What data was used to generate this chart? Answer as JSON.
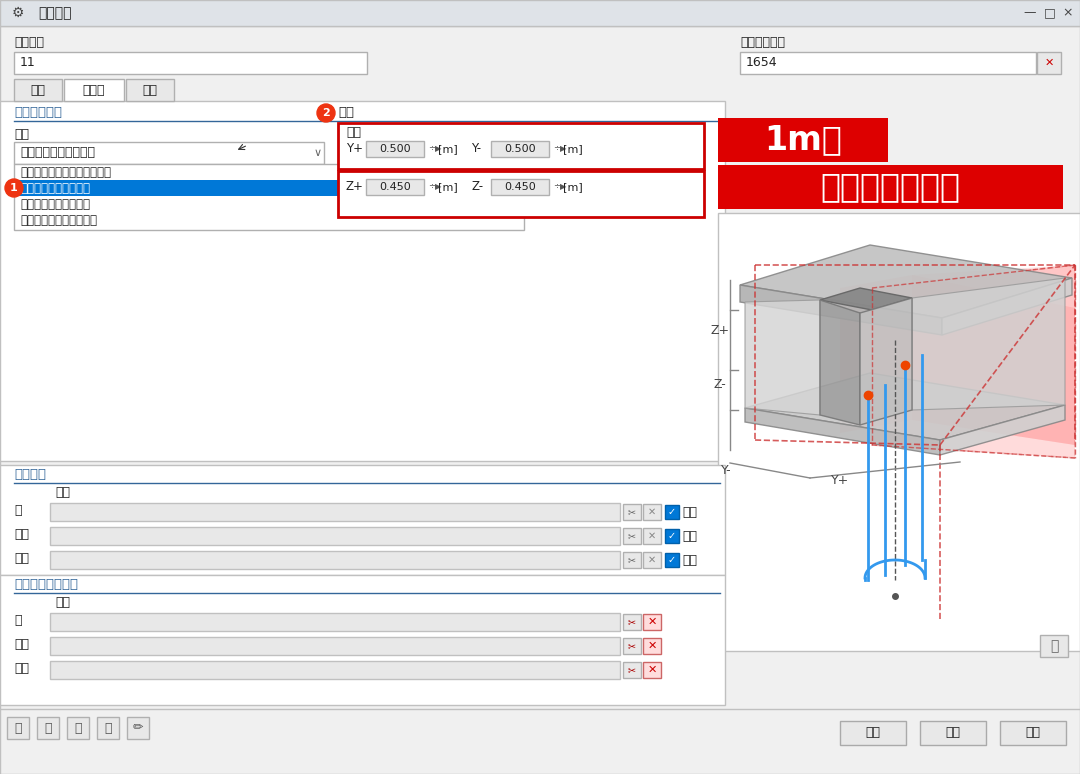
{
  "title_bar": "编辑杆件",
  "field_member_no_label": "杆件编号",
  "field_member_no_value": "11",
  "field_assign_label": "分配给线编号",
  "field_assign_value": "1654",
  "tab_basic": "基本",
  "tab_result": "结果梁",
  "tab_section": "截面",
  "group_stress": "集成应力和力",
  "type_label": "类型",
  "dropdown_value": "立方体内集成应力与力",
  "list_item0": "方形基础的轴由集成应力与力",
  "list_item1": "立方体内集成应力与力",
  "list_item2": "固柱体内集成应力与力",
  "list_item3": "从所列对象集成应力与力",
  "params_label": "参数",
  "dim_label": "尺寸",
  "y_plus_label": "Y+",
  "y_plus_value": "0.500",
  "y_minus_label": "Y-",
  "y_minus_value": "0.500",
  "z_plus_label": "Z+",
  "z_plus_value": "0.450",
  "z_minus_label": "Z-",
  "z_minus_value": "0.450",
  "unit": "[m]",
  "group_include": "包括对象",
  "id_label": "编号",
  "row_face": "面",
  "row_solid": "实体",
  "row_member": "杆件",
  "check_all": "全部",
  "group_exclude": "除了包括对象之外",
  "btn_ok": "确定",
  "btn_cancel": "取消",
  "btn_apply": "应用",
  "annotation1": "1m宽",
  "annotation2": "相应位置的板厚",
  "circle1_label": "1",
  "circle2_label": "2"
}
